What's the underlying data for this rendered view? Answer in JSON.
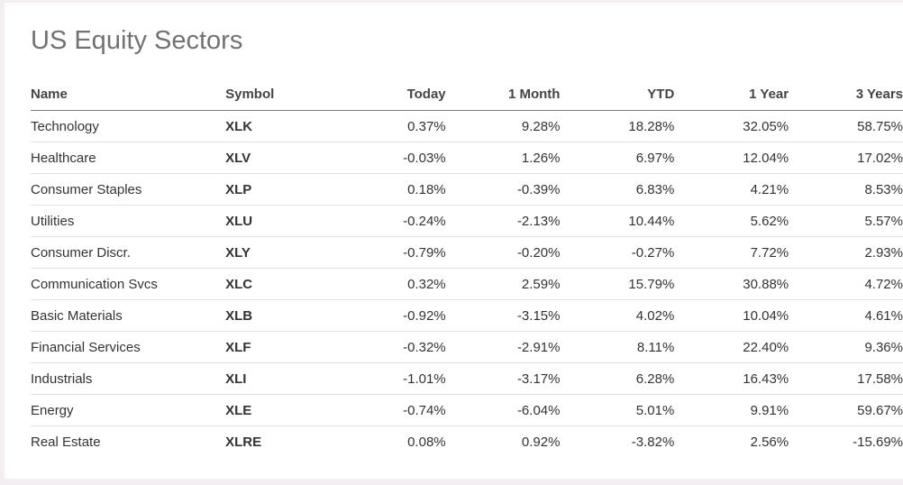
{
  "title": "US Equity Sectors",
  "colors": {
    "positive": "#2e8a3c",
    "negative": "#b5353d",
    "symbol_link": "#2f63c9"
  },
  "columns": [
    "Name",
    "Symbol",
    "Today",
    "1 Month",
    "YTD",
    "1 Year",
    "3 Years"
  ],
  "rows": [
    {
      "name": "Technology",
      "symbol": "XLK",
      "today": "0.37%",
      "month1": "9.28%",
      "ytd": "18.28%",
      "year1": "32.05%",
      "year3": "58.75%"
    },
    {
      "name": "Healthcare",
      "symbol": "XLV",
      "today": "-0.03%",
      "month1": "1.26%",
      "ytd": "6.97%",
      "year1": "12.04%",
      "year3": "17.02%"
    },
    {
      "name": "Consumer Staples",
      "symbol": "XLP",
      "today": "0.18%",
      "month1": "-0.39%",
      "ytd": "6.83%",
      "year1": "4.21%",
      "year3": "8.53%"
    },
    {
      "name": "Utilities",
      "symbol": "XLU",
      "today": "-0.24%",
      "month1": "-2.13%",
      "ytd": "10.44%",
      "year1": "5.62%",
      "year3": "5.57%"
    },
    {
      "name": "Consumer Discr.",
      "symbol": "XLY",
      "today": "-0.79%",
      "month1": "-0.20%",
      "ytd": "-0.27%",
      "year1": "7.72%",
      "year3": "2.93%"
    },
    {
      "name": "Communication Svcs",
      "symbol": "XLC",
      "today": "0.32%",
      "month1": "2.59%",
      "ytd": "15.79%",
      "year1": "30.88%",
      "year3": "4.72%"
    },
    {
      "name": "Basic Materials",
      "symbol": "XLB",
      "today": "-0.92%",
      "month1": "-3.15%",
      "ytd": "4.02%",
      "year1": "10.04%",
      "year3": "4.61%"
    },
    {
      "name": "Financial Services",
      "symbol": "XLF",
      "today": "-0.32%",
      "month1": "-2.91%",
      "ytd": "8.11%",
      "year1": "22.40%",
      "year3": "9.36%"
    },
    {
      "name": "Industrials",
      "symbol": "XLI",
      "today": "-1.01%",
      "month1": "-3.17%",
      "ytd": "6.28%",
      "year1": "16.43%",
      "year3": "17.58%"
    },
    {
      "name": "Energy",
      "symbol": "XLE",
      "today": "-0.74%",
      "month1": "-6.04%",
      "ytd": "5.01%",
      "year1": "9.91%",
      "year3": "59.67%"
    },
    {
      "name": "Real Estate",
      "symbol": "XLRE",
      "today": "0.08%",
      "month1": "0.92%",
      "ytd": "-3.82%",
      "year1": "2.56%",
      "year3": "-15.69%"
    }
  ]
}
